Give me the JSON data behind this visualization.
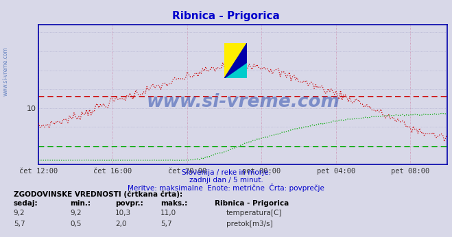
{
  "title": "Ribnica - Prigorica",
  "title_color": "#0000cc",
  "bg_color": "#d8d8e8",
  "plot_bg_color": "#d8d8e8",
  "x_tick_labels": [
    "čet 12:00",
    "čet 16:00",
    "čet 20:00",
    "pet 00:00",
    "pet 04:00",
    "pet 08:00"
  ],
  "x_tick_positions": [
    0,
    48,
    96,
    144,
    192,
    240
  ],
  "total_points": 265,
  "grid_color_v": "#cc88aa",
  "grid_color_h": "#aaaacc",
  "axis_color": "#0000aa",
  "text_color": "#0000cc",
  "subtitle1": "Slovenija / reke in morje.",
  "subtitle2": "zadnji dan / 5 minut.",
  "subtitle3": "Meritve: maksimalne  Enote: metrične  Črta: povprečje",
  "legend_title": "ZGODOVINSKE VREDNOSTI (črtkana črta):",
  "temp_avg_line": 10.3,
  "temp_avg_color": "#cc0000",
  "flow_avg_line": 2.0,
  "flow_avg_color": "#00aa00",
  "ylim_min": 8.5,
  "ylim_max": 12.2,
  "flow_display_min": 8.5,
  "flow_display_max": 9.85,
  "flow_data_min": 0.0,
  "flow_data_max": 5.7,
  "y_tick_val": 10,
  "watermark": "www.si-vreme.com",
  "watermark_color": "#2244aa",
  "sidebar_text": "www.si-vreme.com",
  "sidebar_color": "#5577bb"
}
